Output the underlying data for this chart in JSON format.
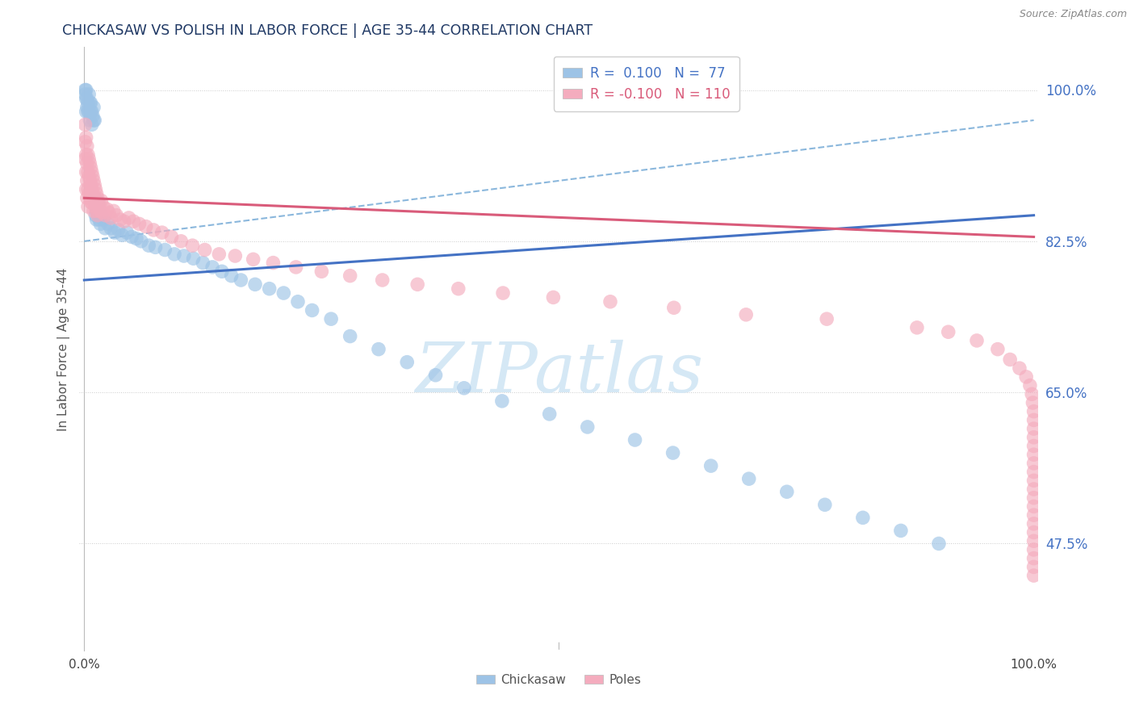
{
  "title": "CHICKASAW VS POLISH IN LABOR FORCE | AGE 35-44 CORRELATION CHART",
  "source_text": "Source: ZipAtlas.com",
  "ylabel": "In Labor Force | Age 35-44",
  "ytick_labels": [
    "47.5%",
    "65.0%",
    "82.5%",
    "100.0%"
  ],
  "ytick_values": [
    0.475,
    0.65,
    0.825,
    1.0
  ],
  "legend_r_chickasaw": "0.100",
  "legend_n_chickasaw": "77",
  "legend_r_polish": "-0.100",
  "legend_n_polish": "110",
  "chickasaw_color": "#9DC3E6",
  "polish_color": "#F4ACBE",
  "trendline_chickasaw_color": "#4472C4",
  "trendline_polish_color": "#D95B7A",
  "dashed_line_color": "#7EB0D9",
  "background_color": "#FFFFFF",
  "grid_color": "#CCCCCC",
  "title_color": "#1F3864",
  "axis_label_color": "#4472C4",
  "watermark_color": "#D5E8F5",
  "chickasaw_trendline": [
    0.78,
    0.855
  ],
  "polish_trendline": [
    0.875,
    0.83
  ],
  "dashed_line": [
    0.825,
    0.965
  ],
  "chickasaw_x": [
    0.001,
    0.001,
    0.002,
    0.002,
    0.002,
    0.003,
    0.003,
    0.004,
    0.004,
    0.005,
    0.005,
    0.006,
    0.006,
    0.007,
    0.007,
    0.008,
    0.008,
    0.009,
    0.01,
    0.01,
    0.011,
    0.011,
    0.012,
    0.012,
    0.013,
    0.013,
    0.014,
    0.015,
    0.015,
    0.016,
    0.017,
    0.018,
    0.02,
    0.022,
    0.025,
    0.028,
    0.032,
    0.036,
    0.04,
    0.045,
    0.05,
    0.055,
    0.06,
    0.068,
    0.075,
    0.085,
    0.095,
    0.105,
    0.115,
    0.125,
    0.135,
    0.145,
    0.155,
    0.165,
    0.18,
    0.195,
    0.21,
    0.225,
    0.24,
    0.26,
    0.28,
    0.31,
    0.34,
    0.37,
    0.4,
    0.44,
    0.49,
    0.53,
    0.58,
    0.62,
    0.66,
    0.7,
    0.74,
    0.78,
    0.82,
    0.86,
    0.9
  ],
  "chickasaw_y": [
    0.995,
    1.0,
    0.99,
    0.975,
    1.0,
    0.99,
    0.98,
    0.975,
    0.985,
    0.995,
    0.975,
    0.985,
    0.965,
    0.975,
    0.985,
    0.96,
    0.975,
    0.97,
    0.965,
    0.98,
    0.875,
    0.965,
    0.855,
    0.87,
    0.86,
    0.85,
    0.86,
    0.855,
    0.87,
    0.85,
    0.845,
    0.855,
    0.85,
    0.84,
    0.845,
    0.84,
    0.835,
    0.838,
    0.832,
    0.835,
    0.83,
    0.828,
    0.825,
    0.82,
    0.818,
    0.815,
    0.81,
    0.808,
    0.805,
    0.8,
    0.795,
    0.79,
    0.785,
    0.78,
    0.775,
    0.77,
    0.765,
    0.755,
    0.745,
    0.735,
    0.715,
    0.7,
    0.685,
    0.67,
    0.655,
    0.64,
    0.625,
    0.61,
    0.595,
    0.58,
    0.565,
    0.55,
    0.535,
    0.52,
    0.505,
    0.49,
    0.475
  ],
  "polish_x": [
    0.001,
    0.001,
    0.001,
    0.002,
    0.002,
    0.002,
    0.002,
    0.003,
    0.003,
    0.003,
    0.003,
    0.004,
    0.004,
    0.004,
    0.004,
    0.005,
    0.005,
    0.005,
    0.006,
    0.006,
    0.006,
    0.007,
    0.007,
    0.007,
    0.008,
    0.008,
    0.008,
    0.009,
    0.009,
    0.01,
    0.01,
    0.01,
    0.011,
    0.011,
    0.012,
    0.012,
    0.013,
    0.013,
    0.014,
    0.014,
    0.015,
    0.016,
    0.017,
    0.018,
    0.019,
    0.02,
    0.022,
    0.024,
    0.026,
    0.028,
    0.031,
    0.034,
    0.038,
    0.042,
    0.047,
    0.052,
    0.058,
    0.065,
    0.073,
    0.082,
    0.092,
    0.102,
    0.114,
    0.127,
    0.142,
    0.159,
    0.178,
    0.199,
    0.223,
    0.25,
    0.28,
    0.314,
    0.351,
    0.394,
    0.441,
    0.494,
    0.554,
    0.621,
    0.697,
    0.782,
    0.877,
    0.91,
    0.94,
    0.962,
    0.975,
    0.985,
    0.992,
    0.996,
    0.998,
    0.999,
    1.0,
    1.0,
    1.0,
    1.0,
    1.0,
    1.0,
    1.0,
    1.0,
    1.0,
    1.0,
    1.0,
    1.0,
    1.0,
    1.0,
    1.0,
    1.0,
    1.0,
    1.0,
    1.0,
    1.0
  ],
  "polish_y": [
    0.96,
    0.94,
    0.92,
    0.945,
    0.925,
    0.905,
    0.885,
    0.935,
    0.915,
    0.895,
    0.875,
    0.925,
    0.905,
    0.885,
    0.865,
    0.92,
    0.9,
    0.88,
    0.915,
    0.895,
    0.875,
    0.91,
    0.89,
    0.87,
    0.905,
    0.885,
    0.87,
    0.9,
    0.88,
    0.895,
    0.875,
    0.86,
    0.89,
    0.87,
    0.885,
    0.865,
    0.88,
    0.86,
    0.875,
    0.855,
    0.87,
    0.865,
    0.86,
    0.872,
    0.858,
    0.865,
    0.855,
    0.862,
    0.858,
    0.852,
    0.86,
    0.855,
    0.85,
    0.848,
    0.852,
    0.848,
    0.845,
    0.842,
    0.838,
    0.835,
    0.83,
    0.825,
    0.82,
    0.815,
    0.81,
    0.808,
    0.804,
    0.8,
    0.795,
    0.79,
    0.785,
    0.78,
    0.775,
    0.77,
    0.765,
    0.76,
    0.755,
    0.748,
    0.74,
    0.735,
    0.725,
    0.72,
    0.71,
    0.7,
    0.688,
    0.678,
    0.668,
    0.658,
    0.648,
    0.638,
    0.628,
    0.618,
    0.608,
    0.598,
    0.588,
    0.578,
    0.568,
    0.558,
    0.548,
    0.538,
    0.528,
    0.518,
    0.508,
    0.498,
    0.488,
    0.478,
    0.468,
    0.458,
    0.448,
    0.438
  ]
}
